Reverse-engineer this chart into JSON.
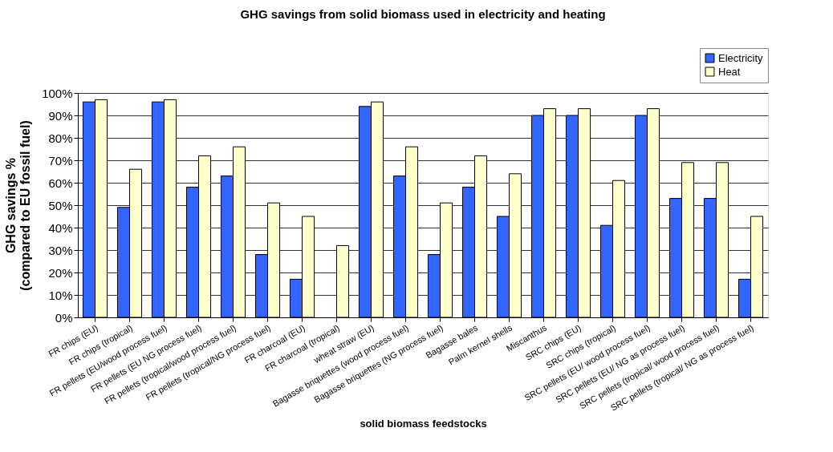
{
  "chart_data": {
    "type": "bar",
    "title": "GHG savings from solid biomass used in electricity and heating",
    "xlabel": "solid biomass feedstocks",
    "ylabel": "GHG savings %\n(compared to EU fossil fuel)",
    "categories": [
      "FR chips (EU)",
      "FR chips (tropical)",
      "FR pellets (EU/wood process fuel)",
      "FR pellets (EU NG process fuel)",
      "FR pellets (tropical/wood process fuel)",
      "FR pellets (tropical/NG process fuel)",
      "FR charcoal (EU)",
      "FR charcoal (tropical)",
      "wheat straw (EU)",
      "Bagasse briquettes (wood process fuel)",
      "Bagasse briquettes (NG process fuel)",
      "Bagasse bales",
      "Palm kernel shells",
      "Miscanthus",
      "SRC chips (EU)",
      "SRC chips (tropical)",
      "SRC pellets (EU/ wood process fuel)",
      "SRC pellets (EU/ NG as process fuel)",
      "SRC pellets (tropical/ wood process fuel)",
      "SRC pellets (tropical/ NG as process fuel)"
    ],
    "series": [
      {
        "name": "Electricity",
        "color": "#3366ff",
        "values": [
          96,
          49,
          96,
          58,
          63,
          28,
          17,
          null,
          94,
          63,
          28,
          58,
          45,
          90,
          90,
          41,
          90,
          53,
          53,
          17
        ]
      },
      {
        "name": "Heat",
        "color": "#ffffcc",
        "values": [
          97,
          66,
          97,
          72,
          76,
          51,
          45,
          32,
          96,
          76,
          51,
          72,
          64,
          93,
          93,
          61,
          93,
          69,
          69,
          45
        ]
      }
    ],
    "ylim": [
      0,
      100
    ],
    "yticks": [
      {
        "value": 0,
        "label": "0%"
      },
      {
        "value": 10,
        "label": "10%"
      },
      {
        "value": 20,
        "label": "20%"
      },
      {
        "value": 30,
        "label": "30%"
      },
      {
        "value": 40,
        "label": "40%"
      },
      {
        "value": 50,
        "label": "50%"
      },
      {
        "value": 60,
        "label": "60%"
      },
      {
        "value": 70,
        "label": "70%"
      },
      {
        "value": 80,
        "label": "80%"
      },
      {
        "value": 90,
        "label": "90%"
      },
      {
        "value": 100,
        "label": "100%"
      }
    ],
    "grid": "y",
    "legend": "top right"
  }
}
